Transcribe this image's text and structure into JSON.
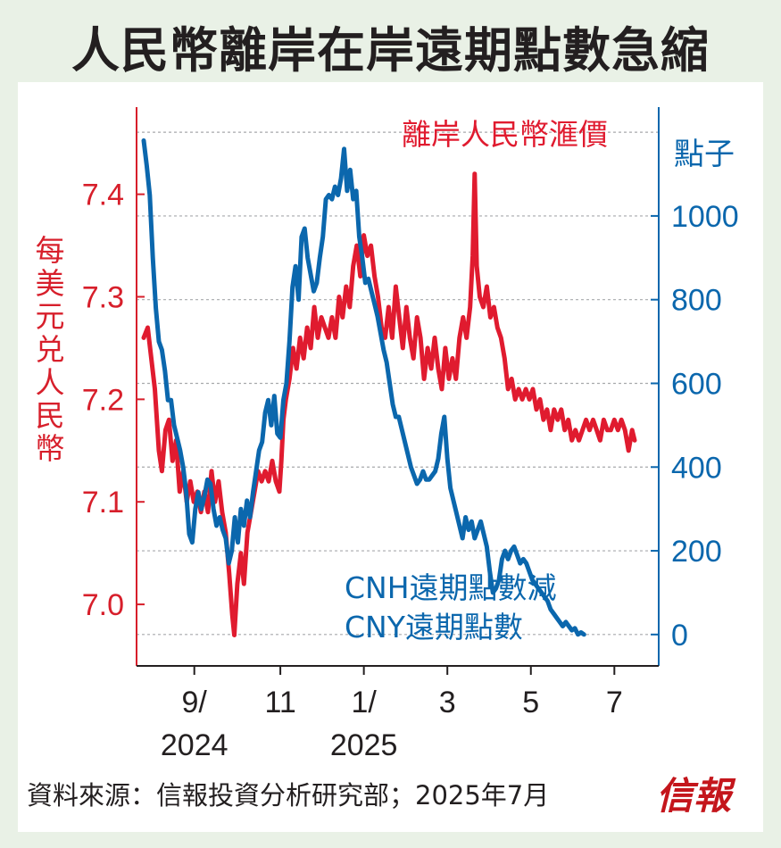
{
  "title": "人民幣離岸在岸遠期點數急縮",
  "source": "資料來源：信報投資分析研究部；2025年7月",
  "logo": "信報",
  "colors": {
    "cnh": "#e01b2f",
    "points": "#0b67ad",
    "left_axis": "#d71f2b",
    "right_axis": "#0b67ad"
  },
  "chart_data": {
    "type": "line",
    "left_axis": {
      "label": "每美元兑人民幣",
      "ticks": [
        "7.0",
        "7.1",
        "7.2",
        "7.3",
        "7.4"
      ],
      "range": [
        6.94,
        7.485
      ]
    },
    "right_axis": {
      "label": "點子",
      "ticks": [
        "0",
        "200",
        "400",
        "600",
        "800",
        "1000"
      ],
      "range": [
        -75,
        1260
      ]
    },
    "x_ticks": [
      {
        "month": "9/",
        "year": "2024",
        "x": 0.1
      },
      {
        "month": "11",
        "year": "",
        "x": 0.27
      },
      {
        "month": "1/",
        "year": "2025",
        "x": 0.435
      },
      {
        "month": "3",
        "year": "",
        "x": 0.6
      },
      {
        "month": "5",
        "year": "",
        "x": 0.765
      },
      {
        "month": "7",
        "year": "",
        "x": 0.93
      }
    ],
    "gridlines": "dashed",
    "series": [
      {
        "name": "離岸人民幣滙價",
        "axis": "left",
        "points": [
          [
            0.0,
            7.26
          ],
          [
            0.008,
            7.27
          ],
          [
            0.015,
            7.24
          ],
          [
            0.022,
            7.21
          ],
          [
            0.03,
            7.15
          ],
          [
            0.036,
            7.13
          ],
          [
            0.043,
            7.17
          ],
          [
            0.05,
            7.18
          ],
          [
            0.057,
            7.14
          ],
          [
            0.064,
            7.16
          ],
          [
            0.071,
            7.11
          ],
          [
            0.078,
            7.13
          ],
          [
            0.085,
            7.1
          ],
          [
            0.092,
            7.12
          ],
          [
            0.099,
            7.1
          ],
          [
            0.106,
            7.11
          ],
          [
            0.113,
            7.09
          ],
          [
            0.12,
            7.11
          ],
          [
            0.127,
            7.09
          ],
          [
            0.134,
            7.13
          ],
          [
            0.141,
            7.1
          ],
          [
            0.148,
            7.12
          ],
          [
            0.155,
            7.09
          ],
          [
            0.162,
            7.07
          ],
          [
            0.169,
            7.03
          ],
          [
            0.175,
            6.99
          ],
          [
            0.179,
            6.97
          ],
          [
            0.185,
            7.02
          ],
          [
            0.192,
            7.05
          ],
          [
            0.198,
            7.02
          ],
          [
            0.205,
            7.07
          ],
          [
            0.212,
            7.09
          ],
          [
            0.219,
            7.11
          ],
          [
            0.226,
            7.13
          ],
          [
            0.233,
            7.12
          ],
          [
            0.24,
            7.13
          ],
          [
            0.247,
            7.12
          ],
          [
            0.254,
            7.14
          ],
          [
            0.261,
            7.12
          ],
          [
            0.268,
            7.11
          ],
          [
            0.272,
            7.14
          ],
          [
            0.276,
            7.18
          ],
          [
            0.281,
            7.2
          ],
          [
            0.288,
            7.22
          ],
          [
            0.295,
            7.25
          ],
          [
            0.302,
            7.23
          ],
          [
            0.309,
            7.26
          ],
          [
            0.316,
            7.24
          ],
          [
            0.323,
            7.27
          ],
          [
            0.33,
            7.25
          ],
          [
            0.337,
            7.29
          ],
          [
            0.344,
            7.26
          ],
          [
            0.351,
            7.28
          ],
          [
            0.358,
            7.27
          ],
          [
            0.365,
            7.26
          ],
          [
            0.372,
            7.28
          ],
          [
            0.379,
            7.26
          ],
          [
            0.386,
            7.3
          ],
          [
            0.393,
            7.28
          ],
          [
            0.4,
            7.31
          ],
          [
            0.407,
            7.29
          ],
          [
            0.414,
            7.33
          ],
          [
            0.421,
            7.35
          ],
          [
            0.428,
            7.32
          ],
          [
            0.435,
            7.36
          ],
          [
            0.442,
            7.34
          ],
          [
            0.449,
            7.35
          ],
          [
            0.456,
            7.32
          ],
          [
            0.463,
            7.3
          ],
          [
            0.47,
            7.27
          ],
          [
            0.477,
            7.26
          ],
          [
            0.484,
            7.29
          ],
          [
            0.491,
            7.26
          ],
          [
            0.498,
            7.31
          ],
          [
            0.505,
            7.28
          ],
          [
            0.512,
            7.25
          ],
          [
            0.519,
            7.29
          ],
          [
            0.526,
            7.26
          ],
          [
            0.533,
            7.24
          ],
          [
            0.54,
            7.28
          ],
          [
            0.547,
            7.26
          ],
          [
            0.554,
            7.22
          ],
          [
            0.561,
            7.25
          ],
          [
            0.568,
            7.23
          ],
          [
            0.575,
            7.26
          ],
          [
            0.582,
            7.23
          ],
          [
            0.589,
            7.21
          ],
          [
            0.596,
            7.25
          ],
          [
            0.603,
            7.22
          ],
          [
            0.61,
            7.24
          ],
          [
            0.617,
            7.22
          ],
          [
            0.624,
            7.26
          ],
          [
            0.631,
            7.28
          ],
          [
            0.638,
            7.26
          ],
          [
            0.645,
            7.29
          ],
          [
            0.65,
            7.34
          ],
          [
            0.654,
            7.42
          ],
          [
            0.658,
            7.33
          ],
          [
            0.664,
            7.3
          ],
          [
            0.671,
            7.29
          ],
          [
            0.678,
            7.31
          ],
          [
            0.685,
            7.28
          ],
          [
            0.692,
            7.29
          ],
          [
            0.699,
            7.27
          ],
          [
            0.706,
            7.26
          ],
          [
            0.713,
            7.24
          ],
          [
            0.72,
            7.21
          ],
          [
            0.727,
            7.22
          ],
          [
            0.734,
            7.2
          ],
          [
            0.741,
            7.21
          ],
          [
            0.748,
            7.2
          ],
          [
            0.755,
            7.21
          ],
          [
            0.762,
            7.2
          ],
          [
            0.769,
            7.21
          ],
          [
            0.776,
            7.19
          ],
          [
            0.783,
            7.2
          ],
          [
            0.79,
            7.18
          ],
          [
            0.797,
            7.19
          ],
          [
            0.804,
            7.17
          ],
          [
            0.811,
            7.19
          ],
          [
            0.818,
            7.18
          ],
          [
            0.825,
            7.19
          ],
          [
            0.832,
            7.17
          ],
          [
            0.839,
            7.18
          ],
          [
            0.846,
            7.16
          ],
          [
            0.853,
            7.17
          ],
          [
            0.86,
            7.16
          ],
          [
            0.867,
            7.17
          ],
          [
            0.874,
            7.18
          ],
          [
            0.881,
            7.17
          ],
          [
            0.888,
            7.18
          ],
          [
            0.895,
            7.17
          ],
          [
            0.902,
            7.16
          ],
          [
            0.909,
            7.18
          ],
          [
            0.916,
            7.17
          ],
          [
            0.923,
            7.17
          ],
          [
            0.93,
            7.18
          ],
          [
            0.937,
            7.17
          ],
          [
            0.944,
            7.18
          ],
          [
            0.951,
            7.17
          ],
          [
            0.958,
            7.15
          ],
          [
            0.965,
            7.17
          ],
          [
            0.97,
            7.16
          ]
        ]
      },
      {
        "name": "CNH遠期點數減CNY遠期點數",
        "axis": "right",
        "points": [
          [
            0.0,
            1180
          ],
          [
            0.006,
            1120
          ],
          [
            0.012,
            1050
          ],
          [
            0.018,
            900
          ],
          [
            0.024,
            780
          ],
          [
            0.03,
            700
          ],
          [
            0.036,
            680
          ],
          [
            0.042,
            630
          ],
          [
            0.048,
            560
          ],
          [
            0.054,
            560
          ],
          [
            0.06,
            500
          ],
          [
            0.066,
            470
          ],
          [
            0.072,
            440
          ],
          [
            0.078,
            400
          ],
          [
            0.084,
            340
          ],
          [
            0.09,
            240
          ],
          [
            0.096,
            220
          ],
          [
            0.102,
            300
          ],
          [
            0.108,
            340
          ],
          [
            0.114,
            300
          ],
          [
            0.12,
            330
          ],
          [
            0.126,
            370
          ],
          [
            0.132,
            360
          ],
          [
            0.138,
            300
          ],
          [
            0.144,
            260
          ],
          [
            0.15,
            280
          ],
          [
            0.156,
            250
          ],
          [
            0.162,
            230
          ],
          [
            0.168,
            170
          ],
          [
            0.174,
            200
          ],
          [
            0.18,
            280
          ],
          [
            0.186,
            220
          ],
          [
            0.192,
            300
          ],
          [
            0.198,
            260
          ],
          [
            0.204,
            320
          ],
          [
            0.21,
            280
          ],
          [
            0.216,
            340
          ],
          [
            0.222,
            390
          ],
          [
            0.228,
            440
          ],
          [
            0.234,
            460
          ],
          [
            0.24,
            530
          ],
          [
            0.246,
            560
          ],
          [
            0.252,
            500
          ],
          [
            0.258,
            570
          ],
          [
            0.264,
            480
          ],
          [
            0.27,
            470
          ],
          [
            0.276,
            560
          ],
          [
            0.282,
            600
          ],
          [
            0.288,
            700
          ],
          [
            0.294,
            830
          ],
          [
            0.3,
            880
          ],
          [
            0.306,
            800
          ],
          [
            0.312,
            950
          ],
          [
            0.318,
            970
          ],
          [
            0.324,
            900
          ],
          [
            0.33,
            860
          ],
          [
            0.336,
            820
          ],
          [
            0.342,
            840
          ],
          [
            0.348,
            900
          ],
          [
            0.354,
            950
          ],
          [
            0.36,
            1040
          ],
          [
            0.366,
            1050
          ],
          [
            0.372,
            1040
          ],
          [
            0.378,
            1070
          ],
          [
            0.384,
            1050
          ],
          [
            0.39,
            1090
          ],
          [
            0.396,
            1160
          ],
          [
            0.402,
            1060
          ],
          [
            0.408,
            1110
          ],
          [
            0.414,
            1040
          ],
          [
            0.42,
            1060
          ],
          [
            0.426,
            950
          ],
          [
            0.432,
            900
          ],
          [
            0.438,
            840
          ],
          [
            0.444,
            850
          ],
          [
            0.45,
            820
          ],
          [
            0.456,
            790
          ],
          [
            0.462,
            760
          ],
          [
            0.468,
            720
          ],
          [
            0.474,
            680
          ],
          [
            0.48,
            650
          ],
          [
            0.486,
            600
          ],
          [
            0.492,
            550
          ],
          [
            0.498,
            520
          ],
          [
            0.504,
            520
          ],
          [
            0.51,
            490
          ],
          [
            0.516,
            460
          ],
          [
            0.522,
            430
          ],
          [
            0.528,
            400
          ],
          [
            0.534,
            380
          ],
          [
            0.54,
            360
          ],
          [
            0.546,
            370
          ],
          [
            0.552,
            390
          ],
          [
            0.558,
            370
          ],
          [
            0.564,
            370
          ],
          [
            0.57,
            380
          ],
          [
            0.576,
            390
          ],
          [
            0.582,
            420
          ],
          [
            0.588,
            480
          ],
          [
            0.594,
            520
          ],
          [
            0.6,
            420
          ],
          [
            0.606,
            350
          ],
          [
            0.612,
            320
          ],
          [
            0.618,
            290
          ],
          [
            0.624,
            260
          ],
          [
            0.63,
            230
          ],
          [
            0.636,
            280
          ],
          [
            0.642,
            250
          ],
          [
            0.648,
            270
          ],
          [
            0.654,
            230
          ],
          [
            0.66,
            250
          ],
          [
            0.666,
            270
          ],
          [
            0.672,
            240
          ],
          [
            0.678,
            210
          ],
          [
            0.684,
            150
          ],
          [
            0.69,
            100
          ],
          [
            0.696,
            110
          ],
          [
            0.702,
            130
          ],
          [
            0.708,
            180
          ],
          [
            0.714,
            200
          ],
          [
            0.72,
            180
          ],
          [
            0.726,
            200
          ],
          [
            0.732,
            210
          ],
          [
            0.738,
            190
          ],
          [
            0.744,
            170
          ],
          [
            0.75,
            180
          ],
          [
            0.756,
            170
          ],
          [
            0.762,
            150
          ],
          [
            0.768,
            130
          ],
          [
            0.774,
            120
          ],
          [
            0.78,
            110
          ],
          [
            0.786,
            100
          ],
          [
            0.792,
            90
          ],
          [
            0.798,
            80
          ],
          [
            0.804,
            60
          ],
          [
            0.81,
            50
          ],
          [
            0.816,
            40
          ],
          [
            0.822,
            30
          ],
          [
            0.828,
            20
          ],
          [
            0.834,
            30
          ],
          [
            0.84,
            20
          ],
          [
            0.846,
            10
          ],
          [
            0.852,
            15
          ],
          [
            0.858,
            0
          ],
          [
            0.864,
            5
          ],
          [
            0.87,
            0
          ]
        ]
      }
    ],
    "annotations": [
      {
        "text": "離岸人民幣滙價",
        "series": 0
      },
      {
        "text": "CNH遠期點數減",
        "series": 1
      },
      {
        "text": "CNY遠期點數",
        "series": 1
      }
    ]
  }
}
